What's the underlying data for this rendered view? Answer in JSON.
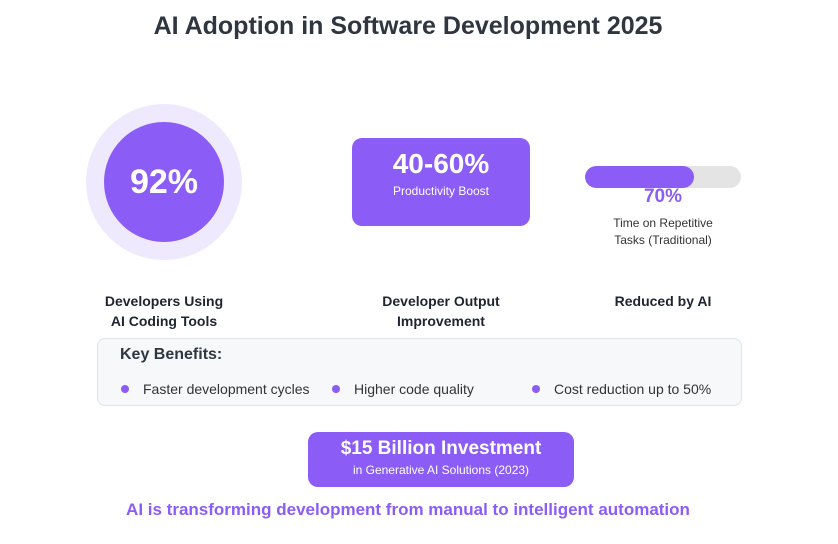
{
  "title": "AI Adoption in Software Development 2025",
  "stats": {
    "adoption": {
      "value": "92%",
      "label_line1": "Developers Using",
      "label_line2": "AI Coding Tools"
    },
    "productivity": {
      "value": "40-60%",
      "sublabel": "Productivity Boost",
      "label_line1": "Developer Output",
      "label_line2": "Improvement"
    },
    "repetitive": {
      "value": "70%",
      "fill_fraction": 0.7,
      "caption_line1": "Time on Repetitive",
      "caption_line2": "Tasks (Traditional)",
      "label": "Reduced by AI"
    }
  },
  "benefits": {
    "title": "Key Benefits:",
    "items": [
      "Faster development cycles",
      "Higher code quality",
      "Cost reduction up to 50%"
    ]
  },
  "investment": {
    "title": "$15 Billion Investment",
    "subtitle": "in Generative AI Solutions (2023)"
  },
  "tagline": "AI is transforming development from manual to intelligent automation",
  "colors": {
    "accent": "#8b5cf6",
    "accent_light": "#efe9fd",
    "title": "#2f3640",
    "track": "#e4e4e4"
  }
}
